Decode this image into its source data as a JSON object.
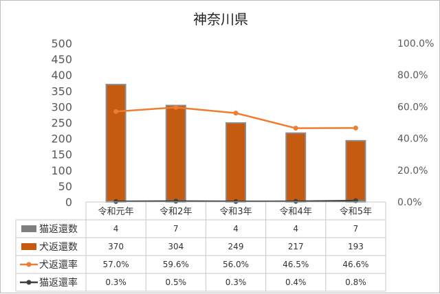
{
  "chart_data": {
    "type": "bar",
    "title": "神奈川県",
    "categories": [
      "令和元年",
      "令和2年",
      "令和3年",
      "令和4年",
      "令和5年"
    ],
    "y_left": {
      "ylim": [
        0,
        500
      ],
      "ticks": [
        "0",
        "50",
        "100",
        "150",
        "200",
        "250",
        "300",
        "350",
        "400",
        "450",
        "500"
      ]
    },
    "y_right": {
      "ylim": [
        0,
        100
      ],
      "ticks": [
        "0.0%",
        "20.0%",
        "40.0%",
        "60.0%",
        "80.0%",
        "100.0%"
      ]
    },
    "grid": false,
    "legend": "data-table",
    "series": [
      {
        "name": "猫返還数",
        "type": "bar",
        "axis": "left",
        "color": "#7f7f7f",
        "values": [
          4,
          7,
          4,
          4,
          7
        ],
        "labels": [
          "4",
          "7",
          "4",
          "4",
          "7"
        ]
      },
      {
        "name": "犬返還数",
        "type": "bar",
        "axis": "left",
        "color": "#c55a11",
        "values": [
          370,
          304,
          249,
          217,
          193
        ],
        "labels": [
          "370",
          "304",
          "249",
          "217",
          "193"
        ]
      },
      {
        "name": "犬返還率",
        "type": "line",
        "axis": "right",
        "color": "#ed7d31",
        "values": [
          57.0,
          59.6,
          56.0,
          46.5,
          46.6
        ],
        "labels": [
          "57.0%",
          "59.6%",
          "56.0%",
          "46.5%",
          "46.6%"
        ]
      },
      {
        "name": "猫返還率",
        "type": "line",
        "axis": "right",
        "color": "#404040",
        "values": [
          0.3,
          0.5,
          0.3,
          0.4,
          0.8
        ],
        "labels": [
          "0.3%",
          "0.5%",
          "0.3%",
          "0.4%",
          "0.8%"
        ]
      }
    ]
  }
}
